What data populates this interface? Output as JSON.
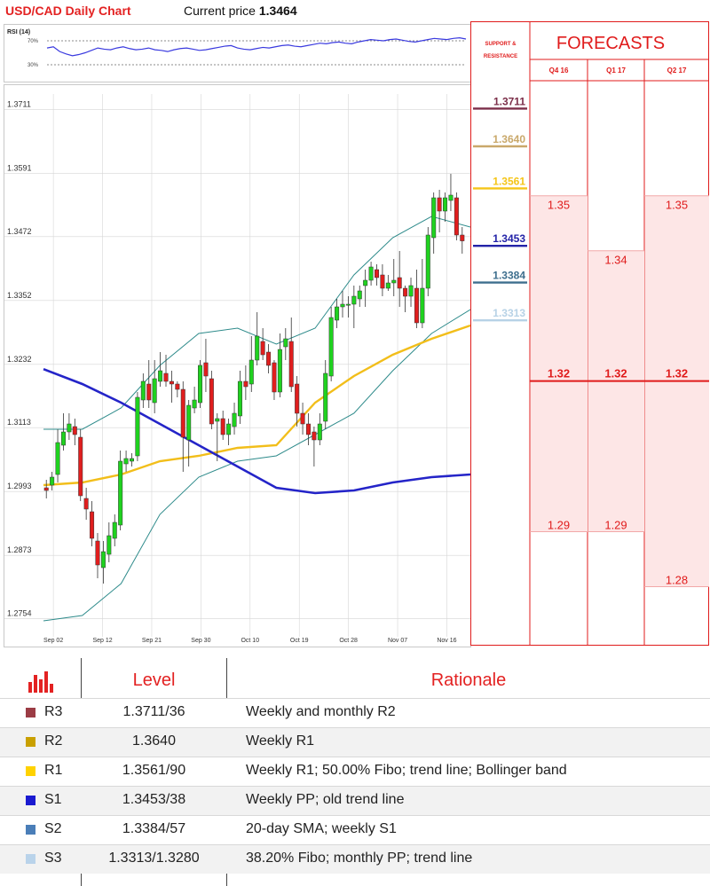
{
  "header": {
    "title": "USD/CAD Daily Chart",
    "price_label": "Current price",
    "price_value": "1.3464"
  },
  "chart_data": {
    "type": "candlestick",
    "y_ticks": [
      "1.3711",
      "1.3591",
      "1.3472",
      "1.3352",
      "1.3232",
      "1.3113",
      "1.2993",
      "1.2873",
      "1.2754"
    ],
    "ylim": [
      1.272,
      1.374
    ],
    "x_ticks": [
      "Sep 02",
      "Sep 12",
      "Sep 21",
      "Sep 30",
      "Oct 10",
      "Oct 19",
      "Oct 28",
      "Nov 07",
      "Nov 16"
    ],
    "rsi": {
      "label": "RSI (14)",
      "levels": [
        "70%",
        "30%"
      ],
      "values": [
        58,
        60,
        52,
        48,
        45,
        47,
        50,
        54,
        58,
        56,
        55,
        58,
        60,
        57,
        55,
        56,
        58,
        55,
        54,
        52,
        55,
        57,
        58,
        56,
        54,
        55,
        57,
        59,
        61,
        62,
        58,
        56,
        55,
        57,
        59,
        58,
        60,
        62,
        63,
        61,
        60,
        62,
        64,
        66,
        65,
        67,
        68,
        66,
        65,
        68,
        70,
        72,
        71,
        70,
        72,
        73,
        71,
        69,
        68,
        70,
        72,
        74,
        73,
        72,
        74,
        75,
        73
      ]
    },
    "candles": [
      [
        1.3,
        1.2995,
        1.3015,
        1.298
      ],
      [
        1.3005,
        1.302,
        1.303,
        1.2995
      ],
      [
        1.3025,
        1.3085,
        1.311,
        1.301
      ],
      [
        1.308,
        1.3105,
        1.314,
        1.307
      ],
      [
        1.3105,
        1.312,
        1.314,
        1.309
      ],
      [
        1.3115,
        1.31,
        1.313,
        1.308
      ],
      [
        1.3095,
        1.2985,
        1.311,
        1.2975
      ],
      [
        1.298,
        1.296,
        1.3,
        1.294
      ],
      [
        1.2955,
        1.2905,
        1.2975,
        1.289
      ],
      [
        1.29,
        1.2855,
        1.2915,
        1.283
      ],
      [
        1.285,
        1.288,
        1.29,
        1.282
      ],
      [
        1.2875,
        1.291,
        1.2935,
        1.286
      ],
      [
        1.2905,
        1.2935,
        1.295,
        1.289
      ],
      [
        1.293,
        1.305,
        1.307,
        1.292
      ],
      [
        1.3045,
        1.3055,
        1.307,
        1.303
      ],
      [
        1.305,
        1.3055,
        1.3065,
        1.304
      ],
      [
        1.306,
        1.317,
        1.318,
        1.305
      ],
      [
        1.3165,
        1.32,
        1.3215,
        1.315
      ],
      [
        1.3195,
        1.3165,
        1.324,
        1.315
      ],
      [
        1.316,
        1.3205,
        1.324,
        1.314
      ],
      [
        1.32,
        1.322,
        1.3255,
        1.319
      ],
      [
        1.3215,
        1.32,
        1.325,
        1.319
      ],
      [
        1.32,
        1.3195,
        1.322,
        1.316
      ],
      [
        1.3195,
        1.3185,
        1.32,
        1.317
      ],
      [
        1.3185,
        1.3095,
        1.32,
        1.303
      ],
      [
        1.309,
        1.3155,
        1.3165,
        1.304
      ],
      [
        1.315,
        1.3165,
        1.319,
        1.314
      ],
      [
        1.316,
        1.323,
        1.324,
        1.315
      ],
      [
        1.3235,
        1.321,
        1.328,
        1.318
      ],
      [
        1.3205,
        1.312,
        1.322,
        1.311
      ],
      [
        1.3125,
        1.313,
        1.314,
        1.305
      ],
      [
        1.313,
        1.31,
        1.3145,
        1.309
      ],
      [
        1.31,
        1.312,
        1.313,
        1.308
      ],
      [
        1.3115,
        1.314,
        1.316,
        1.31
      ],
      [
        1.3135,
        1.32,
        1.322,
        1.312
      ],
      [
        1.32,
        1.319,
        1.323,
        1.3165
      ],
      [
        1.3195,
        1.324,
        1.3285,
        1.318
      ],
      [
        1.324,
        1.3285,
        1.333,
        1.323
      ],
      [
        1.3275,
        1.325,
        1.33,
        1.324
      ],
      [
        1.3255,
        1.323,
        1.327,
        1.3215
      ],
      [
        1.3235,
        1.318,
        1.324,
        1.3165
      ],
      [
        1.318,
        1.326,
        1.329,
        1.317
      ],
      [
        1.3265,
        1.328,
        1.33,
        1.324
      ],
      [
        1.3275,
        1.319,
        1.332,
        1.318
      ],
      [
        1.3195,
        1.314,
        1.321,
        1.3115
      ],
      [
        1.314,
        1.312,
        1.316,
        1.31
      ],
      [
        1.312,
        1.31,
        1.314,
        1.308
      ],
      [
        1.3105,
        1.309,
        1.3115,
        1.304
      ],
      [
        1.309,
        1.312,
        1.314,
        1.308
      ],
      [
        1.3125,
        1.3215,
        1.324,
        1.311
      ],
      [
        1.321,
        1.332,
        1.334,
        1.32
      ],
      [
        1.3315,
        1.334,
        1.3355,
        1.33
      ],
      [
        1.334,
        1.3345,
        1.337,
        1.332
      ],
      [
        1.3345,
        1.3345,
        1.336,
        1.332
      ],
      [
        1.3345,
        1.336,
        1.338,
        1.33
      ],
      [
        1.3355,
        1.337,
        1.338,
        1.334
      ],
      [
        1.338,
        1.339,
        1.341,
        1.334
      ],
      [
        1.339,
        1.3415,
        1.3425,
        1.338
      ],
      [
        1.341,
        1.3395,
        1.342,
        1.338
      ],
      [
        1.34,
        1.3375,
        1.342,
        1.336
      ],
      [
        1.3375,
        1.3385,
        1.34,
        1.337
      ],
      [
        1.3385,
        1.339,
        1.343,
        1.336
      ],
      [
        1.3395,
        1.3375,
        1.3445,
        1.334
      ],
      [
        1.3375,
        1.336,
        1.338,
        1.333
      ],
      [
        1.336,
        1.338,
        1.3395,
        1.334
      ],
      [
        1.3375,
        1.331,
        1.341,
        1.33
      ],
      [
        1.331,
        1.3375,
        1.343,
        1.33
      ],
      [
        1.3375,
        1.3475,
        1.349,
        1.336
      ],
      [
        1.347,
        1.3545,
        1.3555,
        1.344
      ],
      [
        1.3545,
        1.352,
        1.356,
        1.348
      ],
      [
        1.352,
        1.3545,
        1.3555,
        1.35
      ],
      [
        1.354,
        1.355,
        1.359,
        1.352
      ],
      [
        1.3545,
        1.3475,
        1.3555,
        1.3465
      ],
      [
        1.3475,
        1.3464,
        1.349,
        1.344
      ]
    ],
    "sma100": [
      [
        0,
        1.3223
      ],
      [
        8,
        1.3195
      ],
      [
        16,
        1.316
      ],
      [
        24,
        1.312
      ],
      [
        32,
        1.308
      ],
      [
        40,
        1.304
      ],
      [
        48,
        1.3
      ],
      [
        56,
        1.299
      ],
      [
        64,
        1.2995
      ],
      [
        72,
        1.301
      ],
      [
        80,
        1.302
      ],
      [
        88,
        1.3025
      ]
    ],
    "sma50": [
      [
        0,
        1.3005
      ],
      [
        8,
        1.301
      ],
      [
        16,
        1.3025
      ],
      [
        24,
        1.305
      ],
      [
        32,
        1.306
      ],
      [
        40,
        1.3075
      ],
      [
        48,
        1.308
      ],
      [
        56,
        1.316
      ],
      [
        64,
        1.321
      ],
      [
        72,
        1.325
      ],
      [
        80,
        1.328
      ],
      [
        88,
        1.3305
      ]
    ],
    "boll_upper": [
      [
        0,
        1.311
      ],
      [
        8,
        1.311
      ],
      [
        16,
        1.315
      ],
      [
        24,
        1.323
      ],
      [
        32,
        1.329
      ],
      [
        40,
        1.33
      ],
      [
        48,
        1.327
      ],
      [
        56,
        1.33
      ],
      [
        64,
        1.34
      ],
      [
        72,
        1.347
      ],
      [
        80,
        1.351
      ],
      [
        88,
        1.349
      ]
    ],
    "boll_lower": [
      [
        0,
        1.275
      ],
      [
        8,
        1.276
      ],
      [
        16,
        1.282
      ],
      [
        24,
        1.295
      ],
      [
        32,
        1.302
      ],
      [
        40,
        1.305
      ],
      [
        48,
        1.306
      ],
      [
        56,
        1.31
      ],
      [
        64,
        1.314
      ],
      [
        72,
        1.322
      ],
      [
        80,
        1.329
      ],
      [
        88,
        1.3335
      ]
    ]
  },
  "support_resistance": {
    "title": "SUPPORT & RESISTANCE",
    "levels": [
      {
        "code": "R3",
        "value": "1.3711",
        "color": "#7b2e49"
      },
      {
        "code": "R2",
        "value": "1.3640",
        "color": "#c9a86a"
      },
      {
        "code": "R1",
        "value": "1.3561",
        "color": "#f5c518"
      },
      {
        "code": "S1",
        "value": "1.3453",
        "color": "#2323a8"
      },
      {
        "code": "S2",
        "value": "1.3384",
        "color": "#3e6f8e"
      },
      {
        "code": "S3",
        "value": "1.3313",
        "color": "#b7d2e6"
      }
    ]
  },
  "forecasts": {
    "title": "FORECASTS",
    "quarters": [
      {
        "label": "Q4 16",
        "high": "1.35",
        "mid": "1.32",
        "low": "1.29"
      },
      {
        "label": "Q1 17",
        "high": "1.34",
        "mid": "1.32",
        "low": "1.29"
      },
      {
        "label": "Q2 17",
        "high": "1.35",
        "mid": "1.32",
        "low": "1.28"
      }
    ]
  },
  "levels_table": {
    "headers": {
      "level": "Level",
      "rationale": "Rationale"
    },
    "rows": [
      {
        "code": "R3",
        "level": "1.3711/36",
        "rationale": "Weekly and monthly R2",
        "color": "#9b3c45"
      },
      {
        "code": "R2",
        "level": "1.3640",
        "rationale": "Weekly R1",
        "color": "#c9a000"
      },
      {
        "code": "R1",
        "level": "1.3561/90",
        "rationale": "Weekly R1; 50.00% Fibo; trend line; Bollinger band",
        "color": "#ffd200"
      },
      {
        "code": "S1",
        "level": "1.3453/38",
        "rationale": "Weekly PP; old trend line",
        "color": "#1a1ad0"
      },
      {
        "code": "S2",
        "level": "1.3384/57",
        "rationale": "20-day SMA; weekly S1",
        "color": "#4a7eb8"
      },
      {
        "code": "S3",
        "level": "1.3313/1.3280",
        "rationale": "38.20% Fibo; monthly PP; trend line",
        "color": "#b9d3ea"
      }
    ]
  }
}
